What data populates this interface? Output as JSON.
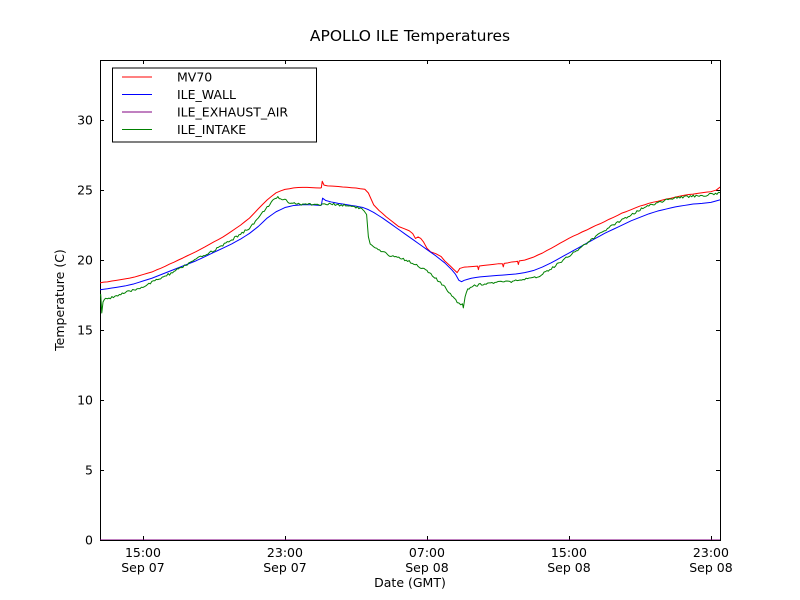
{
  "chart_data": {
    "type": "line",
    "title": "APOLLO ILE Temperatures",
    "xlabel": "Date (GMT)",
    "ylabel": "Temperature (C)",
    "background_color": "#ffffff",
    "axis_color": "#000000",
    "grid": false,
    "legend_position": "upper left",
    "xlim_hours_from_sep07_0000": [
      12.58,
      47.51
    ],
    "ylim": [
      0,
      34.29
    ],
    "xticks": [
      {
        "t": 15,
        "line1": "15:00",
        "line2": "Sep 07"
      },
      {
        "t": 23,
        "line1": "23:00",
        "line2": "Sep 07"
      },
      {
        "t": 31,
        "line1": "07:00",
        "line2": "Sep 08"
      },
      {
        "t": 39,
        "line1": "15:00",
        "line2": "Sep 08"
      },
      {
        "t": 47,
        "line1": "23:00",
        "line2": "Sep 08"
      }
    ],
    "yticks": [
      {
        "v": 0,
        "label": "0"
      },
      {
        "v": 5,
        "label": "5"
      },
      {
        "v": 10,
        "label": "10"
      },
      {
        "v": 15,
        "label": "15"
      },
      {
        "v": 20,
        "label": "20"
      },
      {
        "v": 25,
        "label": "25"
      },
      {
        "v": 30,
        "label": "30"
      }
    ],
    "series": [
      {
        "name": "MV70",
        "color": "#ff0000",
        "noise": 0.012,
        "points": [
          [
            12.58,
            18.38
          ],
          [
            13,
            18.45
          ],
          [
            13.5,
            18.55
          ],
          [
            14,
            18.65
          ],
          [
            14.5,
            18.78
          ],
          [
            15,
            18.95
          ],
          [
            15.5,
            19.15
          ],
          [
            16,
            19.4
          ],
          [
            16.5,
            19.7
          ],
          [
            17,
            20.0
          ],
          [
            17.5,
            20.3
          ],
          [
            18,
            20.6
          ],
          [
            18.5,
            20.95
          ],
          [
            19,
            21.3
          ],
          [
            19.5,
            21.65
          ],
          [
            20,
            22.05
          ],
          [
            20.5,
            22.5
          ],
          [
            21,
            23.0
          ],
          [
            21.5,
            23.65
          ],
          [
            22,
            24.3
          ],
          [
            22.5,
            24.8
          ],
          [
            23,
            25.05
          ],
          [
            23.5,
            25.15
          ],
          [
            24,
            25.2
          ],
          [
            24.5,
            25.18
          ],
          [
            25,
            25.15
          ],
          [
            25.05,
            25.18
          ],
          [
            25.1,
            25.62
          ],
          [
            25.2,
            25.35
          ],
          [
            25.4,
            25.3
          ],
          [
            26,
            25.25
          ],
          [
            26.5,
            25.2
          ],
          [
            27,
            25.15
          ],
          [
            27.5,
            25.05
          ],
          [
            27.7,
            24.8
          ],
          [
            28,
            23.95
          ],
          [
            28.3,
            23.55
          ],
          [
            28.7,
            23.1
          ],
          [
            29,
            22.8
          ],
          [
            29.4,
            22.4
          ],
          [
            29.7,
            22.25
          ],
          [
            30,
            22.1
          ],
          [
            30.2,
            21.9
          ],
          [
            30.35,
            21.55
          ],
          [
            30.5,
            21.65
          ],
          [
            30.65,
            21.55
          ],
          [
            30.8,
            21.3
          ],
          [
            31,
            20.85
          ],
          [
            31.2,
            20.6
          ],
          [
            31.5,
            20.45
          ],
          [
            31.8,
            20.25
          ],
          [
            32,
            19.95
          ],
          [
            32.3,
            19.6
          ],
          [
            32.5,
            19.35
          ],
          [
            32.7,
            19.1
          ],
          [
            32.85,
            19.4
          ],
          [
            33.1,
            19.5
          ],
          [
            33.5,
            19.52
          ],
          [
            33.85,
            19.56
          ],
          [
            33.9,
            19.32
          ],
          [
            33.95,
            19.57
          ],
          [
            34.5,
            19.65
          ],
          [
            35,
            19.72
          ],
          [
            35.25,
            19.74
          ],
          [
            35.3,
            19.52
          ],
          [
            35.35,
            19.76
          ],
          [
            36,
            19.9
          ],
          [
            36.1,
            19.92
          ],
          [
            36.15,
            19.68
          ],
          [
            36.2,
            19.93
          ],
          [
            36.5,
            20.0
          ],
          [
            37,
            20.2
          ],
          [
            37.5,
            20.5
          ],
          [
            38,
            20.85
          ],
          [
            38.5,
            21.2
          ],
          [
            39,
            21.55
          ],
          [
            39.5,
            21.85
          ],
          [
            40,
            22.15
          ],
          [
            40.5,
            22.45
          ],
          [
            41,
            22.75
          ],
          [
            41.5,
            23.05
          ],
          [
            42,
            23.35
          ],
          [
            42.5,
            23.6
          ],
          [
            43,
            23.85
          ],
          [
            43.5,
            24.05
          ],
          [
            44,
            24.2
          ],
          [
            44.5,
            24.35
          ],
          [
            45,
            24.5
          ],
          [
            45.5,
            24.62
          ],
          [
            46,
            24.72
          ],
          [
            46.5,
            24.8
          ],
          [
            47,
            24.88
          ],
          [
            47.3,
            25.0
          ],
          [
            47.51,
            25.2
          ]
        ]
      },
      {
        "name": "ILE_WALL",
        "color": "#0000ff",
        "noise": 0.0,
        "points": [
          [
            12.58,
            17.88
          ],
          [
            13,
            17.95
          ],
          [
            13.5,
            18.05
          ],
          [
            14,
            18.15
          ],
          [
            14.5,
            18.3
          ],
          [
            15,
            18.5
          ],
          [
            15.5,
            18.7
          ],
          [
            16,
            18.95
          ],
          [
            16.5,
            19.2
          ],
          [
            17,
            19.45
          ],
          [
            17.5,
            19.7
          ],
          [
            18,
            19.95
          ],
          [
            18.5,
            20.25
          ],
          [
            19,
            20.55
          ],
          [
            19.5,
            20.85
          ],
          [
            20,
            21.15
          ],
          [
            20.5,
            21.5
          ],
          [
            21,
            21.9
          ],
          [
            21.5,
            22.4
          ],
          [
            22,
            23.0
          ],
          [
            22.5,
            23.45
          ],
          [
            23,
            23.75
          ],
          [
            23.5,
            23.9
          ],
          [
            24,
            23.95
          ],
          [
            24.5,
            23.95
          ],
          [
            25,
            23.9
          ],
          [
            25.05,
            23.92
          ],
          [
            25.12,
            24.42
          ],
          [
            25.3,
            24.25
          ],
          [
            25.6,
            24.15
          ],
          [
            26,
            24.05
          ],
          [
            26.5,
            23.95
          ],
          [
            27,
            23.85
          ],
          [
            27.4,
            23.75
          ],
          [
            27.7,
            23.6
          ],
          [
            28,
            23.4
          ],
          [
            28.5,
            23.0
          ],
          [
            29,
            22.55
          ],
          [
            29.5,
            22.1
          ],
          [
            30,
            21.65
          ],
          [
            30.5,
            21.2
          ],
          [
            31,
            20.75
          ],
          [
            31.5,
            20.3
          ],
          [
            32,
            19.8
          ],
          [
            32.4,
            19.3
          ],
          [
            32.6,
            19.0
          ],
          [
            32.8,
            18.55
          ],
          [
            32.95,
            18.45
          ],
          [
            33.1,
            18.55
          ],
          [
            33.5,
            18.7
          ],
          [
            34,
            18.8
          ],
          [
            34.5,
            18.85
          ],
          [
            35,
            18.9
          ],
          [
            35.5,
            18.95
          ],
          [
            36,
            19.0
          ],
          [
            36.5,
            19.1
          ],
          [
            37,
            19.25
          ],
          [
            37.5,
            19.5
          ],
          [
            38,
            19.8
          ],
          [
            38.5,
            20.15
          ],
          [
            39,
            20.5
          ],
          [
            39.5,
            20.85
          ],
          [
            40,
            21.2
          ],
          [
            40.5,
            21.55
          ],
          [
            41,
            21.9
          ],
          [
            41.5,
            22.2
          ],
          [
            42,
            22.5
          ],
          [
            42.5,
            22.8
          ],
          [
            43,
            23.05
          ],
          [
            43.5,
            23.3
          ],
          [
            44,
            23.5
          ],
          [
            44.5,
            23.65
          ],
          [
            45,
            23.8
          ],
          [
            45.5,
            23.9
          ],
          [
            46,
            24.0
          ],
          [
            46.5,
            24.05
          ],
          [
            47,
            24.12
          ],
          [
            47.51,
            24.3
          ]
        ]
      },
      {
        "name": "ILE_EXHAUST_AIR",
        "color": "#800080",
        "noise": 0.0,
        "points": [
          [
            12.58,
            0
          ],
          [
            47.51,
            0
          ]
        ]
      },
      {
        "name": "ILE_INTAKE",
        "color": "#008000",
        "noise": 0.09,
        "points": [
          [
            12.58,
            17.55
          ],
          [
            12.62,
            17.5
          ],
          [
            12.68,
            16.25
          ],
          [
            12.75,
            17.0
          ],
          [
            12.9,
            17.2
          ],
          [
            13,
            17.25
          ],
          [
            13.5,
            17.45
          ],
          [
            14,
            17.65
          ],
          [
            14.5,
            17.85
          ],
          [
            15,
            18.1
          ],
          [
            15.5,
            18.4
          ],
          [
            16,
            18.7
          ],
          [
            16.5,
            19.0
          ],
          [
            17,
            19.35
          ],
          [
            17.5,
            19.7
          ],
          [
            18,
            20.05
          ],
          [
            18.5,
            20.35
          ],
          [
            19,
            20.7
          ],
          [
            19.5,
            21.05
          ],
          [
            20,
            21.45
          ],
          [
            20.5,
            21.85
          ],
          [
            21,
            22.3
          ],
          [
            21.5,
            23.0
          ],
          [
            22,
            23.8
          ],
          [
            22.3,
            24.2
          ],
          [
            22.6,
            24.45
          ],
          [
            23,
            24.3
          ],
          [
            23.3,
            24.1
          ],
          [
            23.6,
            24.05
          ],
          [
            24,
            23.95
          ],
          [
            24.5,
            24.0
          ],
          [
            25,
            23.95
          ],
          [
            25.5,
            24.0
          ],
          [
            26,
            23.95
          ],
          [
            26.5,
            23.9
          ],
          [
            27,
            23.8
          ],
          [
            27.4,
            23.6
          ],
          [
            27.6,
            23.2
          ],
          [
            27.7,
            21.6
          ],
          [
            27.8,
            21.1
          ],
          [
            28,
            20.9
          ],
          [
            28.5,
            20.55
          ],
          [
            29,
            20.3
          ],
          [
            29.5,
            20.15
          ],
          [
            30,
            19.9
          ],
          [
            30.5,
            19.6
          ],
          [
            31,
            19.2
          ],
          [
            31.3,
            18.9
          ],
          [
            31.6,
            18.55
          ],
          [
            32,
            18.05
          ],
          [
            32.4,
            17.5
          ],
          [
            32.7,
            17.05
          ],
          [
            32.9,
            16.85
          ],
          [
            33.0,
            16.9
          ],
          [
            33.05,
            16.6
          ],
          [
            33.15,
            17.4
          ],
          [
            33.3,
            17.95
          ],
          [
            33.6,
            18.15
          ],
          [
            34,
            18.25
          ],
          [
            34.5,
            18.35
          ],
          [
            35,
            18.4
          ],
          [
            35.5,
            18.45
          ],
          [
            36,
            18.5
          ],
          [
            36.5,
            18.6
          ],
          [
            37,
            18.7
          ],
          [
            37.3,
            18.85
          ],
          [
            37.6,
            19.1
          ],
          [
            38,
            19.4
          ],
          [
            38.5,
            19.85
          ],
          [
            39,
            20.3
          ],
          [
            39.5,
            20.75
          ],
          [
            40,
            21.2
          ],
          [
            40.5,
            21.65
          ],
          [
            41,
            22.1
          ],
          [
            41.5,
            22.5
          ],
          [
            42,
            22.9
          ],
          [
            42.5,
            23.25
          ],
          [
            43,
            23.6
          ],
          [
            43.5,
            23.9
          ],
          [
            44,
            24.1
          ],
          [
            44.5,
            24.3
          ],
          [
            45,
            24.42
          ],
          [
            45.5,
            24.52
          ],
          [
            46,
            24.58
          ],
          [
            46.5,
            24.62
          ],
          [
            47,
            24.68
          ],
          [
            47.51,
            24.8
          ]
        ]
      }
    ]
  }
}
